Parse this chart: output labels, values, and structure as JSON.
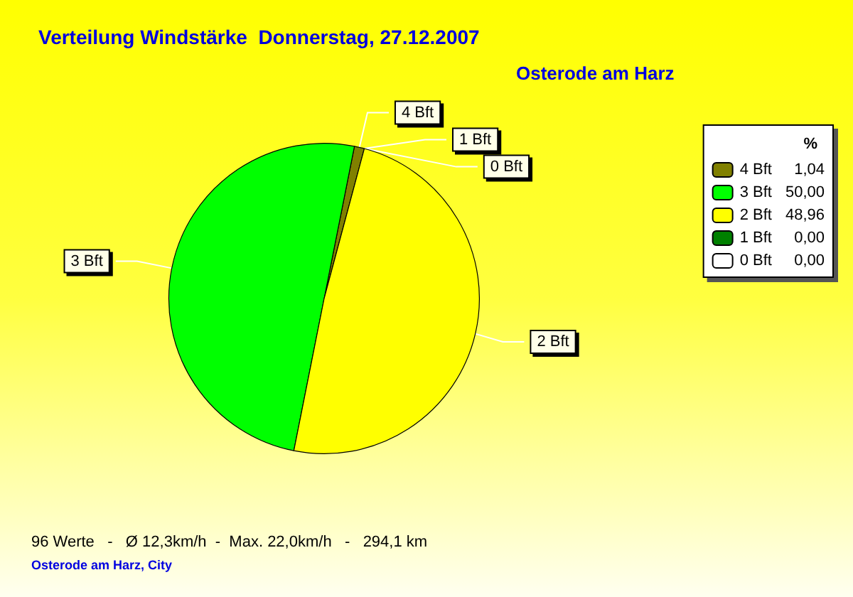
{
  "chart_data": {
    "type": "pie",
    "title": "Verteilung Windstärke  Donnerstag, 27.12.2007",
    "subtitle": "Osterode am Harz",
    "categories": [
      "4 Bft",
      "3 Bft",
      "2 Bft",
      "1 Bft",
      "0 Bft"
    ],
    "values": [
      1.04,
      50.0,
      48.96,
      0.0,
      0.0
    ],
    "value_labels": [
      "1,04",
      "50,00",
      "48,96",
      "0,00",
      "0,00"
    ],
    "colors": [
      "#808000",
      "#00ff00",
      "#ffff00",
      "#008000",
      "#ffffff"
    ],
    "legend": "top right",
    "legend_title": "%",
    "annotations": [
      "96 Werte   -   Ø 12,3km/h  -  Max. 22,0km/h   -   294,1 km",
      "Osterode am Harz, City"
    ]
  }
}
